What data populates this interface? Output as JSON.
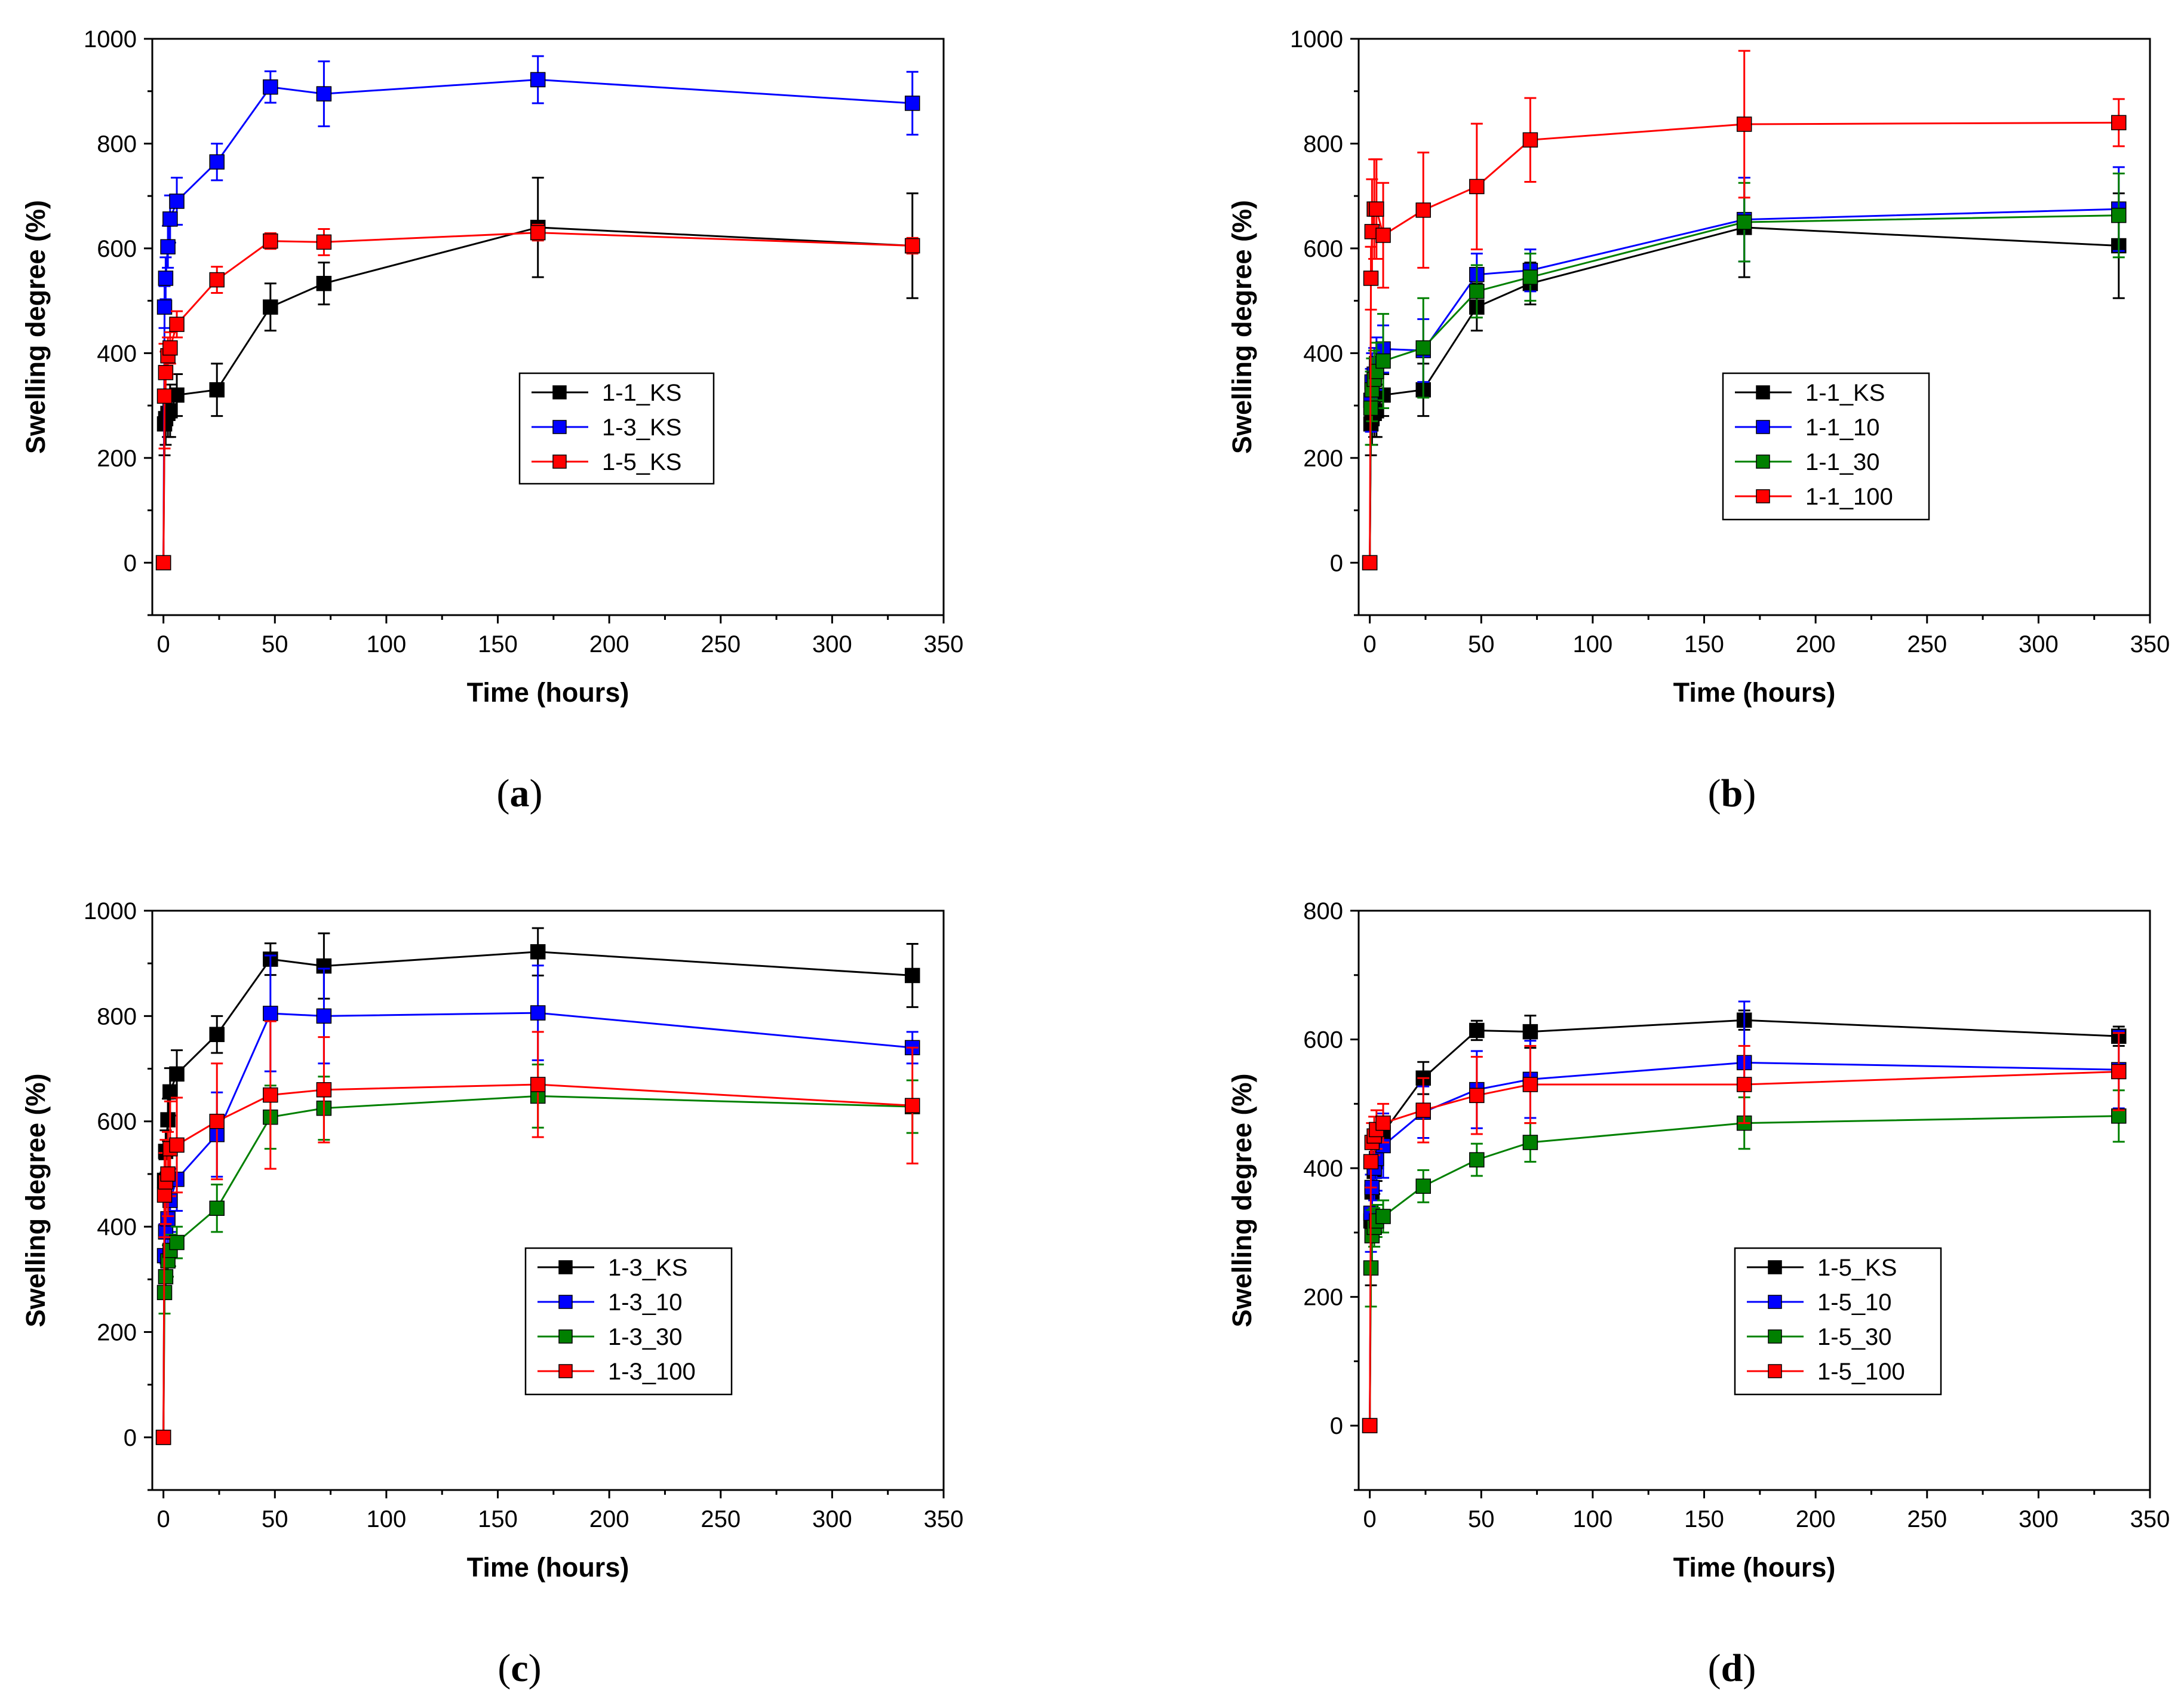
{
  "chart_data": [
    {
      "id": "a",
      "type": "line",
      "panel_label": {
        "open": "(",
        "letter": "a",
        "close": ")"
      },
      "xlabel": "Time (hours)",
      "ylabel": "Swelling degree (%)",
      "xlim": [
        -5,
        350
      ],
      "ylim": [
        -100,
        1000
      ],
      "xticks": [
        0,
        50,
        100,
        150,
        200,
        250,
        300,
        350
      ],
      "yticks": [
        0,
        200,
        400,
        600,
        800,
        1000
      ],
      "legend_position": "center-right",
      "x": [
        0,
        0.5,
        1,
        2,
        3,
        6,
        24,
        48,
        72,
        168,
        336
      ],
      "series": [
        {
          "name": "1-1_KS",
          "color": "#000000",
          "values": [
            0,
            265,
            275,
            285,
            290,
            320,
            330,
            488,
            533,
            640,
            605
          ],
          "errors": [
            0,
            60,
            50,
            45,
            50,
            40,
            50,
            45,
            40,
            95,
            100
          ]
        },
        {
          "name": "1-3_KS",
          "color": "#0000ff",
          "values": [
            0,
            488,
            543,
            603,
            656,
            690,
            765,
            908,
            895,
            922,
            877
          ],
          "errors": [
            0,
            40,
            40,
            40,
            45,
            45,
            35,
            30,
            62,
            45,
            60
          ]
        },
        {
          "name": "1-5_KS",
          "color": "#ff0000",
          "values": [
            0,
            318,
            363,
            395,
            410,
            455,
            540,
            614,
            612,
            630,
            605
          ],
          "errors": [
            0,
            100,
            40,
            35,
            30,
            25,
            25,
            15,
            25,
            15,
            15
          ]
        }
      ]
    },
    {
      "id": "b",
      "type": "line",
      "panel_label": {
        "open": "(",
        "letter": "b",
        "close": ")"
      },
      "xlabel": "Time (hours)",
      "ylabel": "Swelling degree (%)",
      "xlim": [
        -5,
        350
      ],
      "ylim": [
        -100,
        1000
      ],
      "xticks": [
        0,
        50,
        100,
        150,
        200,
        250,
        300,
        350
      ],
      "yticks": [
        0,
        200,
        400,
        600,
        800,
        1000
      ],
      "legend_position": "center-right",
      "x": [
        0,
        0.5,
        1,
        2,
        3,
        6,
        24,
        48,
        72,
        168,
        336
      ],
      "series": [
        {
          "name": "1-1_KS",
          "color": "#000000",
          "values": [
            0,
            265,
            275,
            285,
            290,
            320,
            330,
            488,
            533,
            640,
            605
          ],
          "errors": [
            0,
            60,
            50,
            45,
            50,
            40,
            50,
            45,
            40,
            95,
            100
          ]
        },
        {
          "name": "1-1_10",
          "color": "#0000ff",
          "values": [
            0,
            310,
            345,
            360,
            380,
            408,
            405,
            550,
            558,
            655,
            675
          ],
          "errors": [
            0,
            60,
            55,
            50,
            50,
            45,
            60,
            40,
            40,
            80,
            80
          ]
        },
        {
          "name": "1-1_30",
          "color": "#008000",
          "values": [
            0,
            295,
            330,
            350,
            365,
            385,
            410,
            518,
            545,
            650,
            663
          ],
          "errors": [
            0,
            70,
            60,
            55,
            55,
            90,
            95,
            50,
            45,
            75,
            80
          ]
        },
        {
          "name": "1-1_100",
          "color": "#ff0000",
          "values": [
            0,
            543,
            632,
            675,
            675,
            625,
            673,
            718,
            807,
            837,
            840
          ],
          "errors": [
            0,
            60,
            100,
            95,
            95,
            100,
            110,
            120,
            80,
            140,
            45
          ]
        }
      ]
    },
    {
      "id": "c",
      "type": "line",
      "panel_label": {
        "open": "(",
        "letter": "c",
        "close": ")"
      },
      "xlabel": "Time (hours)",
      "ylabel": "Swelling degree (%)",
      "xlim": [
        -5,
        350
      ],
      "ylim": [
        -100,
        1000
      ],
      "xticks": [
        0,
        50,
        100,
        150,
        200,
        250,
        300,
        350
      ],
      "yticks": [
        0,
        200,
        400,
        600,
        800,
        1000
      ],
      "legend_position": "center-right",
      "x": [
        0,
        0.5,
        1,
        2,
        3,
        6,
        24,
        48,
        72,
        168,
        336
      ],
      "series": [
        {
          "name": "1-3_KS",
          "color": "#000000",
          "values": [
            0,
            488,
            543,
            603,
            656,
            690,
            765,
            908,
            895,
            922,
            877
          ],
          "errors": [
            0,
            40,
            40,
            40,
            45,
            45,
            35,
            30,
            62,
            45,
            60
          ]
        },
        {
          "name": "1-3_10",
          "color": "#0000ff",
          "values": [
            0,
            345,
            390,
            415,
            450,
            490,
            575,
            805,
            800,
            806,
            740
          ],
          "errors": [
            0,
            60,
            60,
            60,
            60,
            60,
            80,
            110,
            90,
            90,
            30
          ]
        },
        {
          "name": "1-3_30",
          "color": "#008000",
          "values": [
            0,
            275,
            305,
            335,
            355,
            370,
            435,
            608,
            625,
            648,
            628
          ],
          "errors": [
            0,
            40,
            35,
            30,
            30,
            30,
            45,
            60,
            60,
            60,
            50
          ]
        },
        {
          "name": "1-3_100",
          "color": "#ff0000",
          "values": [
            0,
            460,
            485,
            500,
            548,
            555,
            600,
            650,
            660,
            670,
            630
          ],
          "errors": [
            0,
            80,
            80,
            80,
            90,
            90,
            110,
            140,
            100,
            100,
            110
          ]
        }
      ]
    },
    {
      "id": "d",
      "type": "line",
      "panel_label": {
        "open": "(",
        "letter": "d",
        "close": ")"
      },
      "xlabel": "Time (hours)",
      "ylabel": "Swelling degree (%)",
      "xlim": [
        -5,
        350
      ],
      "ylim": [
        -100,
        800
      ],
      "xticks": [
        0,
        50,
        100,
        150,
        200,
        250,
        300,
        350
      ],
      "yticks": [
        0,
        200,
        400,
        600,
        800
      ],
      "legend_position": "center-right",
      "x": [
        0,
        0.5,
        1,
        2,
        3,
        6,
        24,
        48,
        72,
        168,
        336
      ],
      "series": [
        {
          "name": "1-5_KS",
          "color": "#000000",
          "values": [
            0,
            318,
            363,
            395,
            410,
            455,
            540,
            614,
            612,
            630,
            605
          ],
          "errors": [
            0,
            100,
            40,
            35,
            30,
            25,
            25,
            15,
            25,
            15,
            15
          ]
        },
        {
          "name": "1-5_10",
          "color": "#0000ff",
          "values": [
            0,
            330,
            370,
            400,
            415,
            435,
            487,
            522,
            538,
            564,
            553
          ],
          "errors": [
            0,
            60,
            50,
            50,
            50,
            50,
            40,
            60,
            60,
            95,
            60
          ]
        },
        {
          "name": "1-5_30",
          "color": "#008000",
          "values": [
            0,
            245,
            295,
            308,
            318,
            325,
            372,
            413,
            440,
            470,
            481
          ],
          "errors": [
            0,
            60,
            40,
            30,
            25,
            25,
            25,
            25,
            30,
            40,
            40
          ]
        },
        {
          "name": "1-5_100",
          "color": "#ff0000",
          "values": [
            0,
            410,
            440,
            450,
            460,
            470,
            490,
            513,
            530,
            530,
            550
          ],
          "errors": [
            0,
            40,
            30,
            30,
            30,
            30,
            50,
            60,
            60,
            60,
            60
          ]
        }
      ]
    }
  ]
}
